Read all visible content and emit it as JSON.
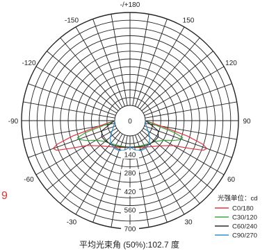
{
  "chart_data": {
    "type": "polar",
    "angle_labels": [
      {
        "angle": 180,
        "label": "-/+180"
      },
      {
        "angle": 150,
        "label": "150"
      },
      {
        "angle": -150,
        "label": "-150"
      },
      {
        "angle": 120,
        "label": "120"
      },
      {
        "angle": -120,
        "label": "-120"
      },
      {
        "angle": 90,
        "label": "90"
      },
      {
        "angle": -90,
        "label": "-90"
      },
      {
        "angle": -60,
        "label": "-60"
      },
      {
        "angle": 60,
        "label": "60"
      },
      {
        "angle": -30,
        "label": "-30"
      },
      {
        "angle": 30,
        "label": "30"
      },
      {
        "angle": 0,
        "label": "0"
      }
    ],
    "rings": [
      0,
      140,
      280,
      420,
      560,
      700
    ],
    "ring_labels": [
      "0",
      "140",
      "280",
      "420",
      "560",
      "700"
    ],
    "r_max": 700,
    "units_label": "光强单位：cd",
    "edge_text": "9",
    "series": [
      {
        "name": "C0/180",
        "color": "#e8323c",
        "points": [
          [
            -90,
            0
          ],
          [
            -80,
            120
          ],
          [
            -75,
            330
          ],
          [
            -72,
            460
          ],
          [
            -70,
            500
          ],
          [
            -68,
            480
          ],
          [
            -65,
            380
          ],
          [
            -60,
            260
          ],
          [
            -50,
            180
          ],
          [
            -40,
            140
          ],
          [
            -30,
            115
          ],
          [
            -20,
            100
          ],
          [
            -10,
            90
          ],
          [
            0,
            85
          ],
          [
            10,
            90
          ],
          [
            20,
            100
          ],
          [
            30,
            115
          ],
          [
            40,
            140
          ],
          [
            50,
            180
          ],
          [
            60,
            260
          ],
          [
            65,
            380
          ],
          [
            68,
            480
          ],
          [
            70,
            500
          ],
          [
            72,
            460
          ],
          [
            75,
            330
          ],
          [
            80,
            120
          ],
          [
            90,
            0
          ]
        ]
      },
      {
        "name": "C30/120",
        "color": "#3aa83a",
        "points": [
          [
            -90,
            0
          ],
          [
            -80,
            80
          ],
          [
            -75,
            230
          ],
          [
            -72,
            300
          ],
          [
            -70,
            300
          ],
          [
            -65,
            240
          ],
          [
            -60,
            180
          ],
          [
            -50,
            130
          ],
          [
            -40,
            110
          ],
          [
            -30,
            95
          ],
          [
            -20,
            90
          ],
          [
            -10,
            85
          ],
          [
            0,
            85
          ],
          [
            10,
            85
          ],
          [
            20,
            90
          ],
          [
            30,
            95
          ],
          [
            40,
            110
          ],
          [
            50,
            130
          ],
          [
            60,
            180
          ],
          [
            65,
            240
          ],
          [
            70,
            300
          ],
          [
            72,
            300
          ],
          [
            75,
            230
          ],
          [
            80,
            80
          ],
          [
            90,
            0
          ]
        ]
      },
      {
        "name": "C60/240",
        "color": "#2a2a2a",
        "points": [
          [
            -90,
            0
          ],
          [
            -80,
            40
          ],
          [
            -70,
            110
          ],
          [
            -60,
            130
          ],
          [
            -50,
            125
          ],
          [
            -40,
            115
          ],
          [
            -30,
            105
          ],
          [
            -20,
            95
          ],
          [
            -10,
            88
          ],
          [
            0,
            85
          ],
          [
            10,
            88
          ],
          [
            20,
            95
          ],
          [
            30,
            105
          ],
          [
            40,
            115
          ],
          [
            50,
            125
          ],
          [
            60,
            130
          ],
          [
            70,
            110
          ],
          [
            80,
            40
          ],
          [
            90,
            0
          ]
        ]
      },
      {
        "name": "C90/270",
        "color": "#2f8fd0",
        "points": [
          [
            -90,
            0
          ],
          [
            -75,
            10
          ],
          [
            -60,
            40
          ],
          [
            -50,
            80
          ],
          [
            -40,
            110
          ],
          [
            -30,
            125
          ],
          [
            -20,
            125
          ],
          [
            -10,
            110
          ],
          [
            0,
            85
          ],
          [
            10,
            110
          ],
          [
            20,
            125
          ],
          [
            30,
            125
          ],
          [
            40,
            110
          ],
          [
            50,
            80
          ],
          [
            60,
            40
          ],
          [
            75,
            10
          ],
          [
            90,
            0
          ]
        ]
      }
    ],
    "caption": "平均光束角 (50%):102.7 度"
  }
}
